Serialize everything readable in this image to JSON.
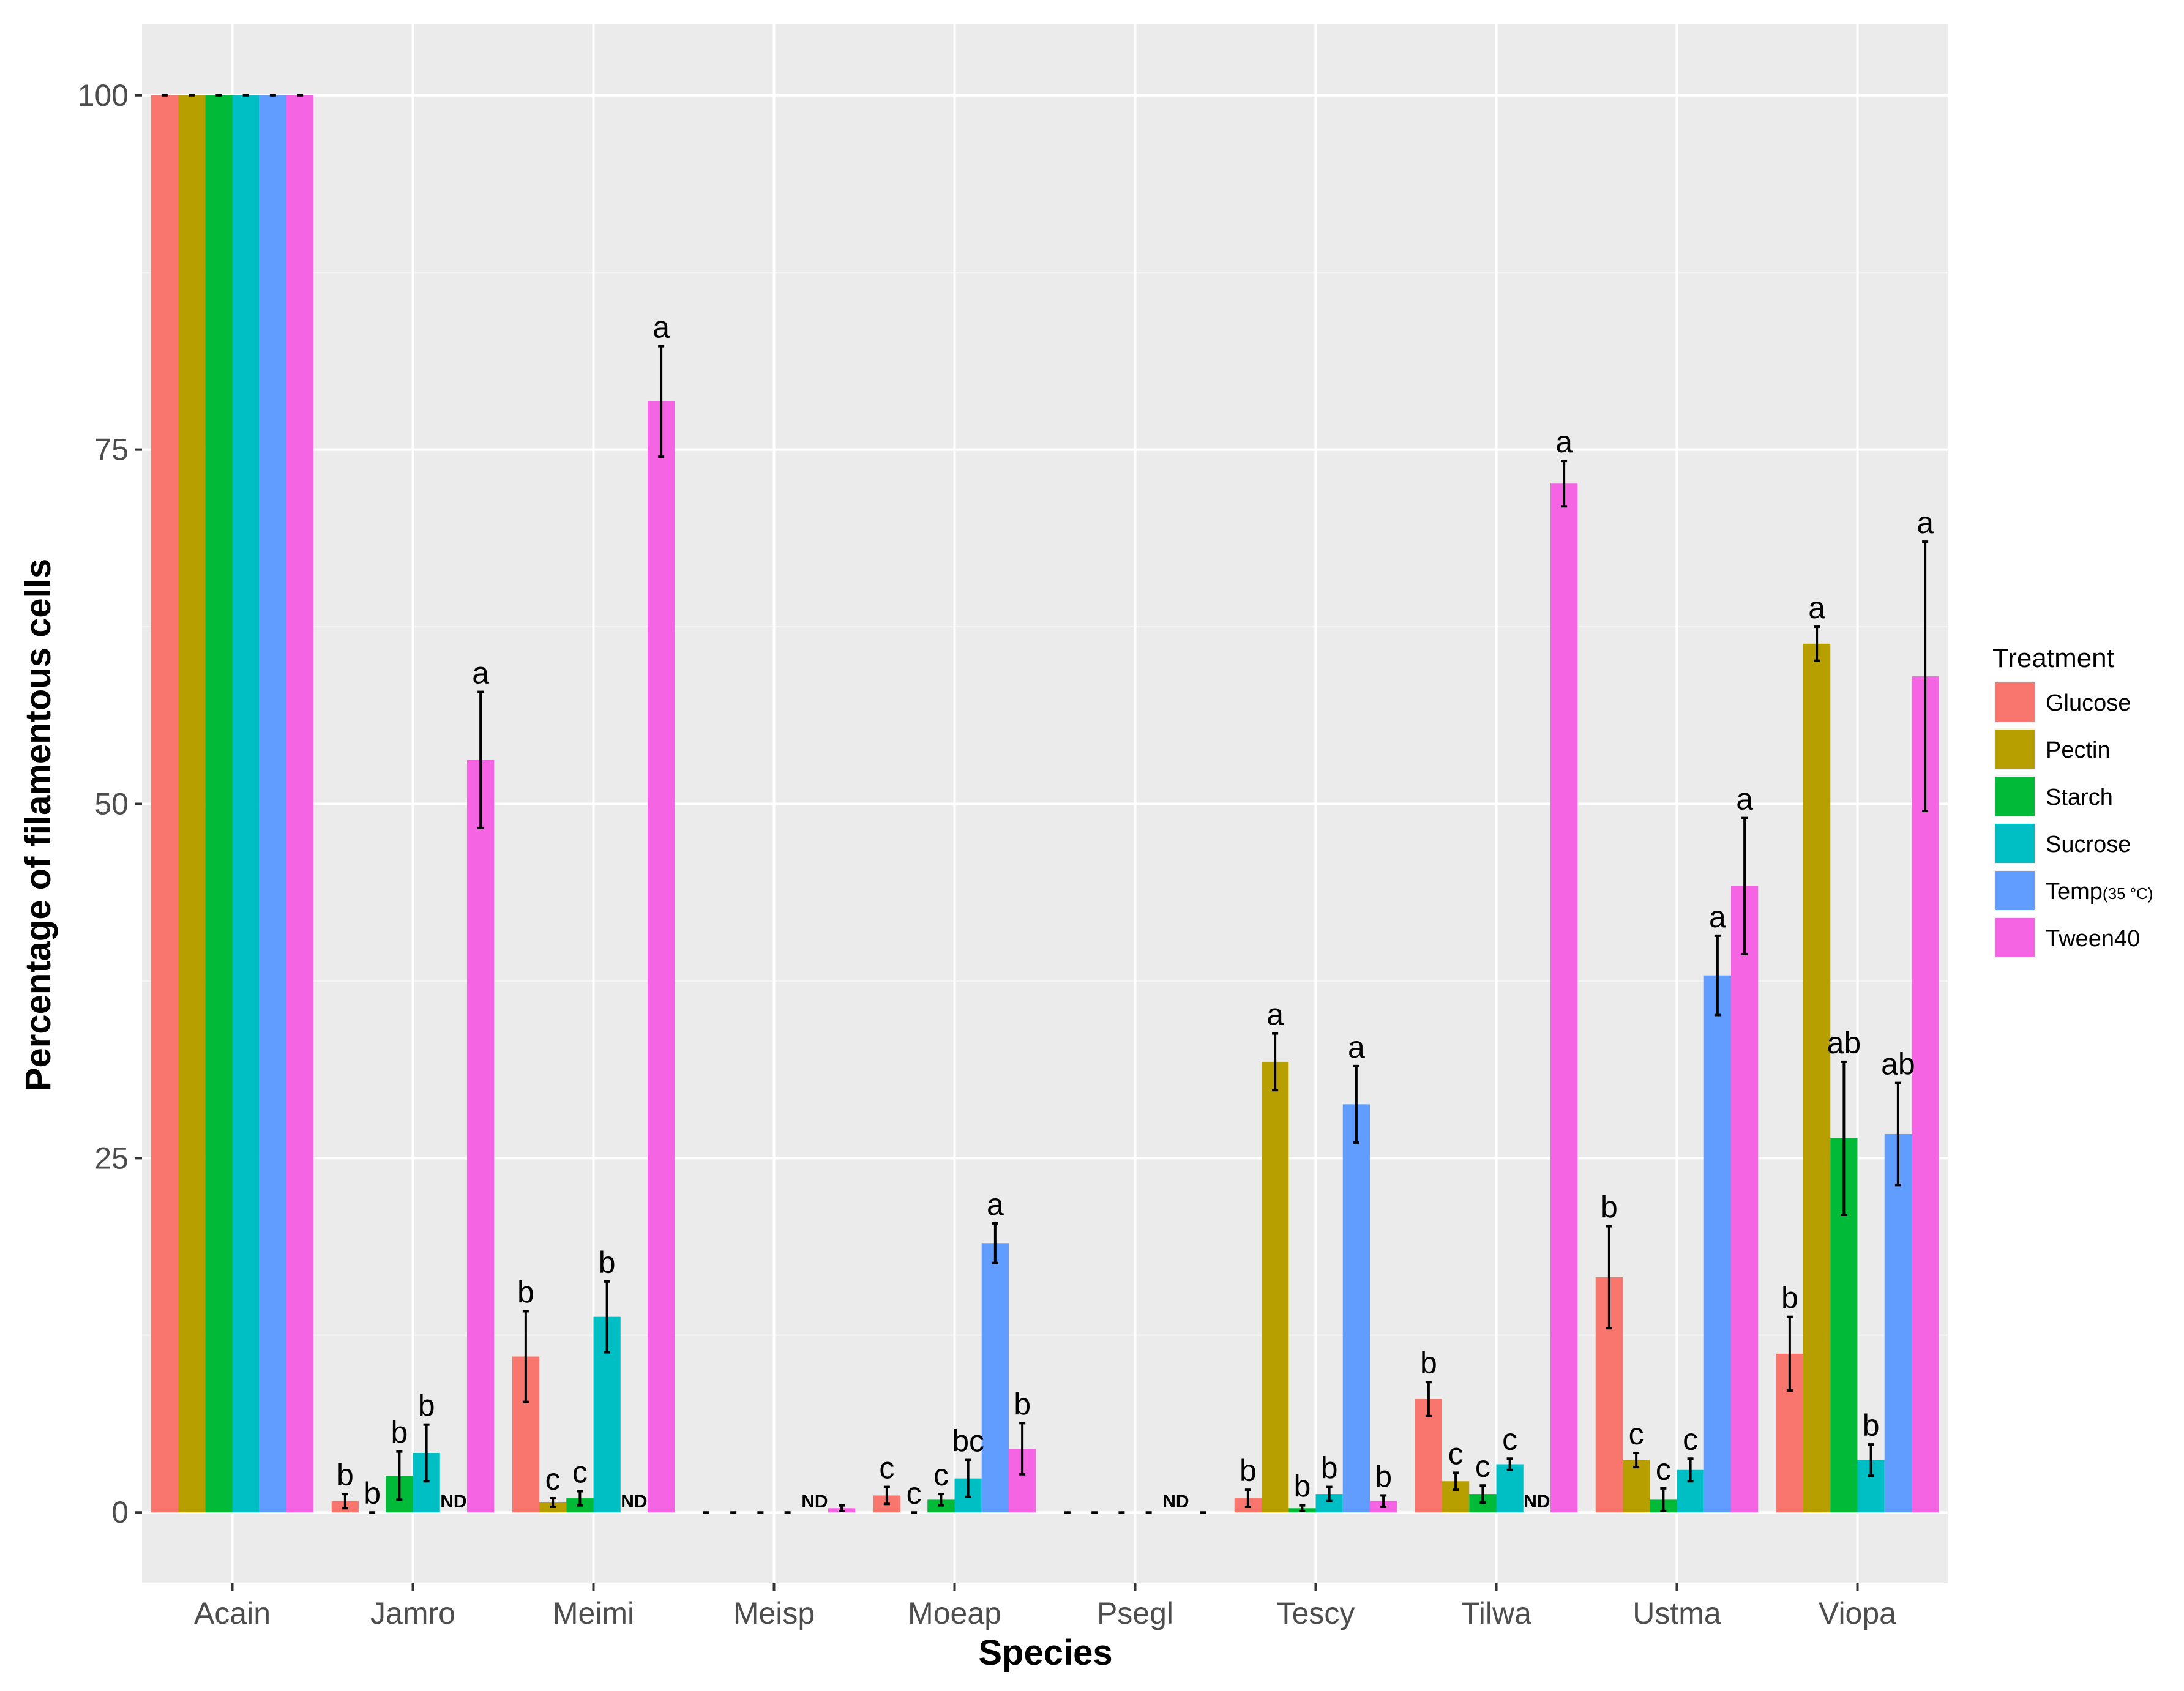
{
  "chart_data": {
    "type": "bar",
    "xlabel": "Species",
    "ylabel": "Percentage of filamentous cells",
    "ylim": [
      -5,
      105
    ],
    "yticks": [
      0,
      25,
      50,
      75,
      100
    ],
    "grid": true,
    "legend_title": "Treatment",
    "legend_position": "right",
    "not_detected_label": "ND",
    "categories": [
      "Acain",
      "Jamro",
      "Meimi",
      "Meisp",
      "Moeap",
      "Psegl",
      "Tescy",
      "Tilwa",
      "Ustma",
      "Viopa"
    ],
    "series": [
      {
        "name": "Glucose",
        "legend_label": "Glucose",
        "color": "#F8766D",
        "values": [
          100,
          0.8,
          11,
          0,
          1.2,
          0,
          1.0,
          8.0,
          16.6,
          11.2
        ],
        "errors": [
          0,
          0.5,
          3.2,
          0,
          0.6,
          0,
          0.6,
          1.2,
          3.6,
          2.6
        ],
        "labels": [
          "",
          "b",
          "b",
          "",
          "c",
          "",
          "b",
          "b",
          "b",
          "b"
        ],
        "nd": [
          false,
          false,
          false,
          false,
          false,
          false,
          false,
          false,
          false,
          false
        ]
      },
      {
        "name": "Pectin",
        "legend_label": "Pectin",
        "color": "#B79F00",
        "values": [
          100,
          0,
          0.7,
          0,
          0,
          0,
          31.8,
          2.2,
          3.7,
          61.3
        ],
        "errors": [
          0,
          0,
          0.3,
          0,
          0,
          0,
          2.0,
          0.6,
          0.5,
          1.2
        ],
        "labels": [
          "",
          "b",
          "c",
          "",
          "c",
          "",
          "a",
          "c",
          "c",
          "a"
        ],
        "nd": [
          false,
          false,
          false,
          false,
          false,
          false,
          false,
          false,
          false,
          false
        ]
      },
      {
        "name": "Starch",
        "legend_label": "Starch",
        "color": "#00BA38",
        "values": [
          100,
          2.6,
          1.0,
          0,
          0.9,
          0,
          0.3,
          1.3,
          0.9,
          26.4
        ],
        "errors": [
          0,
          1.7,
          0.5,
          0,
          0.4,
          0,
          0.2,
          0.6,
          0.8,
          5.4
        ],
        "labels": [
          "",
          "b",
          "c",
          "",
          "c",
          "",
          "b",
          "c",
          "c",
          "ab"
        ],
        "nd": [
          false,
          false,
          false,
          false,
          false,
          false,
          false,
          false,
          false,
          false
        ]
      },
      {
        "name": "Sucrose",
        "legend_label": "Sucrose",
        "color": "#00BFC4",
        "values": [
          100,
          4.2,
          13.8,
          0,
          2.4,
          0,
          1.3,
          3.4,
          3.0,
          3.7
        ],
        "errors": [
          0,
          2.0,
          2.5,
          0,
          1.3,
          0,
          0.5,
          0.4,
          0.8,
          1.1
        ],
        "labels": [
          "",
          "b",
          "b",
          "",
          "bc",
          "",
          "b",
          "c",
          "c",
          "b"
        ],
        "nd": [
          false,
          false,
          false,
          false,
          false,
          false,
          false,
          false,
          false,
          false
        ]
      },
      {
        "name": "Temp(35 °C)",
        "legend_label": "Temp",
        "legend_sub": "(35 °C)",
        "color": "#619CFF",
        "values": [
          100,
          0,
          0,
          0,
          19.0,
          0,
          28.8,
          0,
          37.9,
          26.7
        ],
        "errors": [
          0,
          0,
          0,
          0,
          1.4,
          0,
          2.7,
          0,
          2.8,
          3.6
        ],
        "labels": [
          "",
          "ND",
          "ND",
          "ND",
          "a",
          "ND",
          "a",
          "ND",
          "a",
          "ab"
        ],
        "nd": [
          false,
          true,
          true,
          true,
          false,
          true,
          false,
          true,
          false,
          false
        ]
      },
      {
        "name": "Tween40",
        "legend_label": "Tween40",
        "color": "#F564E3",
        "values": [
          100,
          53.1,
          78.4,
          0.3,
          4.5,
          0,
          0.8,
          72.6,
          44.2,
          59.0
        ],
        "errors": [
          0,
          4.8,
          3.9,
          0.2,
          1.8,
          0,
          0.4,
          1.6,
          4.8,
          9.5
        ],
        "labels": [
          "",
          "a",
          "a",
          "",
          "b",
          "",
          "b",
          "a",
          "a",
          "a"
        ],
        "nd": [
          false,
          false,
          false,
          false,
          false,
          false,
          false,
          false,
          false,
          false
        ]
      }
    ]
  }
}
